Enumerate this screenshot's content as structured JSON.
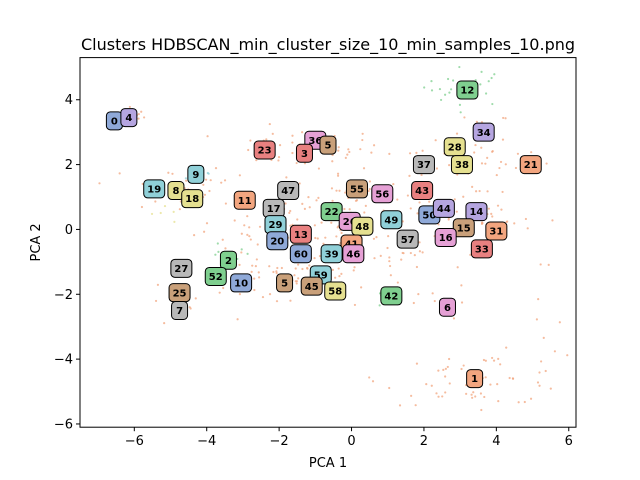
{
  "chart_data": {
    "type": "scatter",
    "title": "Clusters HDBSCAN_min_cluster_size_10_min_samples_10.png",
    "xlabel": "PCA 1",
    "ylabel": "PCA 2",
    "xlim": [
      -7.5,
      6.2
    ],
    "ylim": [
      -6.1,
      5.3
    ],
    "xticks": [
      -6,
      -4,
      -2,
      0,
      2,
      4,
      6
    ],
    "yticks": [
      -6,
      -4,
      -2,
      0,
      2,
      4
    ],
    "grid": false,
    "palette": [
      "#8fa9d8",
      "#f2a57f",
      "#7fcf8f",
      "#e88080",
      "#b5a5e0",
      "#c9a07a",
      "#e5a0d5",
      "#b8b8b8",
      "#e5e090",
      "#90d0d8"
    ],
    "cluster_labels": [
      {
        "id": "0",
        "x": -6.55,
        "y": 3.35,
        "color": "#8fa9d8"
      },
      {
        "id": "4",
        "x": -6.15,
        "y": 3.45,
        "color": "#b5a5e0"
      },
      {
        "id": "12",
        "x": 3.2,
        "y": 4.3,
        "color": "#7fcf8f"
      },
      {
        "id": "34",
        "x": 3.65,
        "y": 3.0,
        "color": "#b5a5e0"
      },
      {
        "id": "36",
        "x": -1.0,
        "y": 2.75,
        "color": "#e5a0d5"
      },
      {
        "id": "5",
        "x": -0.65,
        "y": 2.6,
        "color": "#c9a07a"
      },
      {
        "id": "23",
        "x": -2.4,
        "y": 2.45,
        "color": "#e88080"
      },
      {
        "id": "3",
        "x": -1.3,
        "y": 2.35,
        "color": "#e88080"
      },
      {
        "id": "28",
        "x": 2.85,
        "y": 2.55,
        "color": "#e5e090"
      },
      {
        "id": "37",
        "x": 2.0,
        "y": 2.0,
        "color": "#b8b8b8"
      },
      {
        "id": "38",
        "x": 3.05,
        "y": 2.0,
        "color": "#e5e090"
      },
      {
        "id": "21",
        "x": 4.95,
        "y": 2.0,
        "color": "#f2a57f"
      },
      {
        "id": "9",
        "x": -4.3,
        "y": 1.7,
        "color": "#90d0d8"
      },
      {
        "id": "19",
        "x": -5.45,
        "y": 1.25,
        "color": "#90d0d8"
      },
      {
        "id": "8",
        "x": -4.85,
        "y": 1.2,
        "color": "#e5e090"
      },
      {
        "id": "18",
        "x": -4.4,
        "y": 0.95,
        "color": "#e5e090"
      },
      {
        "id": "11",
        "x": -2.95,
        "y": 0.9,
        "color": "#f2a57f"
      },
      {
        "id": "47",
        "x": -1.75,
        "y": 1.2,
        "color": "#b8b8b8"
      },
      {
        "id": "55",
        "x": 0.15,
        "y": 1.25,
        "color": "#c9a07a"
      },
      {
        "id": "56",
        "x": 0.85,
        "y": 1.1,
        "color": "#e5a0d5"
      },
      {
        "id": "43",
        "x": 1.95,
        "y": 1.2,
        "color": "#e88080"
      },
      {
        "id": "17",
        "x": -2.15,
        "y": 0.65,
        "color": "#b8b8b8"
      },
      {
        "id": "22",
        "x": -0.55,
        "y": 0.55,
        "color": "#7fcf8f"
      },
      {
        "id": "50",
        "x": 2.15,
        "y": 0.45,
        "color": "#8fa9d8"
      },
      {
        "id": "44",
        "x": 2.55,
        "y": 0.65,
        "color": "#b5a5e0"
      },
      {
        "id": "14",
        "x": 3.45,
        "y": 0.55,
        "color": "#b5a5e0"
      },
      {
        "id": "29",
        "x": -2.1,
        "y": 0.15,
        "color": "#90d0d8"
      },
      {
        "id": "26",
        "x": -0.05,
        "y": 0.25,
        "color": "#e5a0d5"
      },
      {
        "id": "48",
        "x": 0.3,
        "y": 0.1,
        "color": "#e5e090"
      },
      {
        "id": "49",
        "x": 1.1,
        "y": 0.3,
        "color": "#90d0d8"
      },
      {
        "id": "15",
        "x": 3.1,
        "y": 0.05,
        "color": "#c9a07a"
      },
      {
        "id": "31",
        "x": 4.0,
        "y": -0.05,
        "color": "#f2a57f"
      },
      {
        "id": "13",
        "x": -1.4,
        "y": -0.15,
        "color": "#e88080"
      },
      {
        "id": "20",
        "x": -2.05,
        "y": -0.35,
        "color": "#8fa9d8"
      },
      {
        "id": "57",
        "x": 1.55,
        "y": -0.3,
        "color": "#b8b8b8"
      },
      {
        "id": "16",
        "x": 2.6,
        "y": -0.25,
        "color": "#e5a0d5"
      },
      {
        "id": "41",
        "x": 0.0,
        "y": -0.45,
        "color": "#f2a57f"
      },
      {
        "id": "33",
        "x": 3.6,
        "y": -0.6,
        "color": "#e88080"
      },
      {
        "id": "60",
        "x": -1.4,
        "y": -0.75,
        "color": "#8fa9d8"
      },
      {
        "id": "39",
        "x": -0.55,
        "y": -0.75,
        "color": "#90d0d8"
      },
      {
        "id": "46",
        "x": 0.05,
        "y": -0.75,
        "color": "#e5a0d5"
      },
      {
        "id": "2",
        "x": -3.4,
        "y": -0.95,
        "color": "#7fcf8f"
      },
      {
        "id": "27",
        "x": -4.7,
        "y": -1.2,
        "color": "#b8b8b8"
      },
      {
        "id": "52",
        "x": -3.75,
        "y": -1.45,
        "color": "#7fcf8f"
      },
      {
        "id": "59",
        "x": -0.85,
        "y": -1.4,
        "color": "#90d0d8"
      },
      {
        "id": "10",
        "x": -3.05,
        "y": -1.65,
        "color": "#8fa9d8"
      },
      {
        "id": "5",
        "x": -1.85,
        "y": -1.65,
        "color": "#c9a07a"
      },
      {
        "id": "45",
        "x": -1.1,
        "y": -1.75,
        "color": "#c9a07a"
      },
      {
        "id": "58",
        "x": -0.45,
        "y": -1.9,
        "color": "#e5e090"
      },
      {
        "id": "25",
        "x": -4.75,
        "y": -1.95,
        "color": "#c9a07a"
      },
      {
        "id": "42",
        "x": 1.1,
        "y": -2.05,
        "color": "#7fcf8f"
      },
      {
        "id": "7",
        "x": -4.75,
        "y": -2.5,
        "color": "#b8b8b8"
      },
      {
        "id": "6",
        "x": 2.65,
        "y": -2.4,
        "color": "#e5a0d5"
      },
      {
        "id": "1",
        "x": 3.4,
        "y": -4.6,
        "color": "#f2a57f"
      }
    ],
    "point_groups": [
      {
        "cx": -6.0,
        "cy": 3.5,
        "sx": 0.3,
        "sy": 0.2,
        "n": 12,
        "color": "#f2a57f"
      },
      {
        "cx": 3.2,
        "cy": 4.4,
        "sx": 0.6,
        "sy": 0.3,
        "n": 25,
        "color": "#7fcf8f"
      },
      {
        "cx": 3.6,
        "cy": 3.0,
        "sx": 0.4,
        "sy": 0.3,
        "n": 12,
        "color": "#f2a57f"
      },
      {
        "cx": -1.5,
        "cy": 2.5,
        "sx": 1.2,
        "sy": 0.3,
        "n": 40,
        "color": "#f2a57f"
      },
      {
        "cx": 3.5,
        "cy": 2.1,
        "sx": 1.0,
        "sy": 0.3,
        "n": 30,
        "color": "#f2a57f"
      },
      {
        "cx": -4.8,
        "cy": 1.3,
        "sx": 0.7,
        "sy": 0.4,
        "n": 25,
        "color": "#f2a57f"
      },
      {
        "cx": -4.3,
        "cy": 1.7,
        "sx": 0.3,
        "sy": 0.1,
        "n": 6,
        "color": "#90d0d8"
      },
      {
        "cx": 0.0,
        "cy": 0.5,
        "sx": 2.0,
        "sy": 0.8,
        "n": 160,
        "color": "#f2a57f"
      },
      {
        "cx": 3.2,
        "cy": 0.2,
        "sx": 0.9,
        "sy": 0.5,
        "n": 45,
        "color": "#f2a57f"
      },
      {
        "cx": -2.6,
        "cy": -1.2,
        "sx": 1.0,
        "sy": 0.6,
        "n": 35,
        "color": "#f2a57f"
      },
      {
        "cx": -3.5,
        "cy": -1.0,
        "sx": 0.4,
        "sy": 0.3,
        "n": 10,
        "color": "#7fcf8f"
      },
      {
        "cx": -4.8,
        "cy": -2.3,
        "sx": 0.4,
        "sy": 0.4,
        "n": 12,
        "color": "#f2a57f"
      },
      {
        "cx": -0.2,
        "cy": -1.5,
        "sx": 1.3,
        "sy": 0.5,
        "n": 45,
        "color": "#f2a57f"
      },
      {
        "cx": 1.1,
        "cy": -2.0,
        "sx": 0.3,
        "sy": 0.2,
        "n": 6,
        "color": "#7fcf8f"
      },
      {
        "cx": 2.7,
        "cy": -2.3,
        "sx": 0.3,
        "sy": 0.3,
        "n": 8,
        "color": "#f2a57f"
      },
      {
        "cx": 3.5,
        "cy": -4.6,
        "sx": 1.3,
        "sy": 0.4,
        "n": 60,
        "color": "#f2a57f"
      },
      {
        "cx": 5.5,
        "cy": -3.5,
        "sx": 0.4,
        "sy": 0.6,
        "n": 8,
        "color": "#f2a57f"
      },
      {
        "cx": -5.3,
        "cy": 0.4,
        "sx": 0.3,
        "sy": 0.3,
        "n": 5,
        "color": "#e5e090"
      }
    ]
  }
}
